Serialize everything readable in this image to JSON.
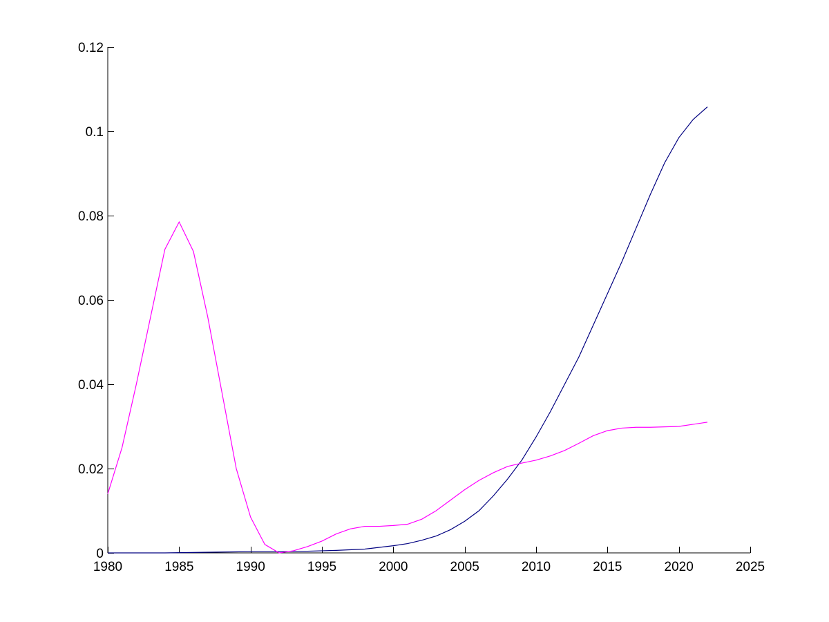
{
  "chart_data": {
    "type": "line",
    "title": "",
    "xlabel": "",
    "ylabel": "",
    "xlim": [
      1980,
      2025
    ],
    "ylim": [
      0,
      0.12
    ],
    "x_ticks": [
      1980,
      1985,
      1990,
      1995,
      2000,
      2005,
      2010,
      2015,
      2020,
      2025
    ],
    "x_tick_labels": [
      "1980",
      "1985",
      "1990",
      "1995",
      "2000",
      "2005",
      "2010",
      "2015",
      "2020",
      "2025"
    ],
    "y_ticks": [
      0,
      0.02,
      0.04,
      0.06,
      0.08,
      0.1,
      0.12
    ],
    "y_tick_labels": [
      "0",
      "0.02",
      "0.04",
      "0.06",
      "0.08",
      "0.1",
      "0.12"
    ],
    "grid": false,
    "legend": "none",
    "series": [
      {
        "color": "#000080",
        "x": [
          1980,
          1982,
          1984,
          1986,
          1988,
          1990,
          1992,
          1994,
          1996,
          1998,
          2000,
          2001,
          2002,
          2003,
          2004,
          2005,
          2006,
          2007,
          2008,
          2009,
          2010,
          2011,
          2012,
          2013,
          2014,
          2015,
          2016,
          2017,
          2018,
          2019,
          2020,
          2021,
          2022
        ],
        "y": [
          0.0,
          0.0,
          0.0,
          0.0001,
          0.0002,
          0.0003,
          0.0003,
          0.0004,
          0.0006,
          0.0009,
          0.0017,
          0.0022,
          0.003,
          0.004,
          0.0055,
          0.0075,
          0.01,
          0.0135,
          0.0175,
          0.022,
          0.0275,
          0.0335,
          0.04,
          0.0465,
          0.054,
          0.0615,
          0.069,
          0.077,
          0.085,
          0.0925,
          0.0985,
          0.1028,
          0.1058
        ]
      },
      {
        "color": "#ff00ff",
        "x": [
          1980,
          1981,
          1982,
          1983,
          1984,
          1985,
          1986,
          1987,
          1988,
          1989,
          1990,
          1991,
          1992,
          1993,
          1994,
          1995,
          1996,
          1997,
          1998,
          1999,
          2000,
          2001,
          2002,
          2003,
          2004,
          2005,
          2006,
          2007,
          2008,
          2009,
          2010,
          2011,
          2012,
          2013,
          2014,
          2015,
          2016,
          2017,
          2018,
          2019,
          2020,
          2021,
          2022
        ],
        "y": [
          0.014,
          0.025,
          0.04,
          0.056,
          0.072,
          0.0785,
          0.0715,
          0.056,
          0.038,
          0.02,
          0.0085,
          0.002,
          0.0,
          0.0005,
          0.0015,
          0.0028,
          0.0045,
          0.0057,
          0.0063,
          0.0063,
          0.0065,
          0.0068,
          0.008,
          0.01,
          0.0125,
          0.015,
          0.0172,
          0.019,
          0.0205,
          0.0213,
          0.022,
          0.023,
          0.0243,
          0.026,
          0.0278,
          0.029,
          0.0296,
          0.0298,
          0.0298,
          0.0299,
          0.03,
          0.0305,
          0.031
        ]
      }
    ]
  }
}
